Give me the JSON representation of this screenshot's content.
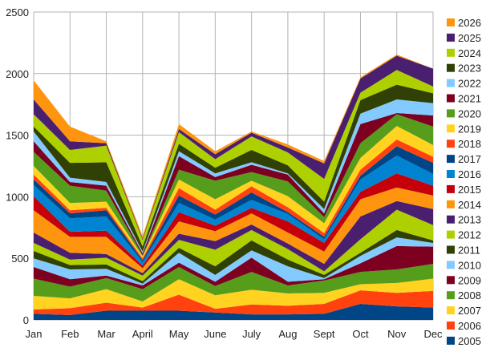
{
  "chart_data": {
    "type": "area",
    "stacked": true,
    "title": "",
    "xlabel": "",
    "ylabel": "",
    "ylim": [
      0,
      2500
    ],
    "yticks": [
      0,
      500,
      1000,
      1500,
      2000,
      2500
    ],
    "grid": true,
    "legend_position": "right",
    "categories": [
      "Jan",
      "Feb",
      "Mar",
      "April",
      "May",
      "June",
      "July",
      "Aug",
      "Sept",
      "Oct",
      "Nov",
      "Dec"
    ],
    "series": [
      {
        "name": "2005",
        "color": "#004586",
        "values": [
          50,
          40,
          75,
          75,
          75,
          60,
          45,
          45,
          50,
          130,
          110,
          100
        ]
      },
      {
        "name": "2006",
        "color": "#ff420e",
        "values": [
          35,
          55,
          65,
          25,
          130,
          30,
          80,
          70,
          80,
          110,
          110,
          135
        ]
      },
      {
        "name": "2007",
        "color": "#ffd320",
        "values": [
          110,
          80,
          110,
          50,
          125,
          110,
          120,
          100,
          90,
          50,
          80,
          100
        ]
      },
      {
        "name": "2008",
        "color": "#579d1c",
        "values": [
          140,
          95,
          90,
          100,
          100,
          75,
          145,
          65,
          100,
          100,
          110,
          120
        ]
      },
      {
        "name": "2009",
        "color": "#7e0021",
        "values": [
          95,
          60,
          20,
          30,
          35,
          35,
          115,
          30,
          10,
          70,
          190,
          140
        ]
      },
      {
        "name": "2010",
        "color": "#83caff",
        "values": [
          70,
          80,
          55,
          15,
          80,
          55,
          60,
          125,
          10,
          60,
          70,
          30
        ]
      },
      {
        "name": "2011",
        "color": "#314004",
        "values": [
          60,
          35,
          35,
          20,
          40,
          70,
          80,
          55,
          25,
          25,
          60,
          20
        ]
      },
      {
        "name": "2012",
        "color": "#aecf00",
        "values": [
          65,
          45,
          55,
          45,
          65,
          135,
          85,
          85,
          30,
          110,
          165,
          125
        ]
      },
      {
        "name": "2013",
        "color": "#4b1f6f",
        "values": [
          85,
          55,
          30,
          20,
          50,
          70,
          45,
          45,
          60,
          185,
          70,
          130
        ]
      },
      {
        "name": "2014",
        "color": "#ff950e",
        "values": [
          180,
          130,
          140,
          40,
          100,
          80,
          90,
          90,
          100,
          140,
          110,
          110
        ]
      },
      {
        "name": "2015",
        "color": "#c5000b",
        "values": [
          115,
          40,
          50,
          20,
          75,
          45,
          45,
          90,
          70,
          60,
          115,
          80
        ]
      },
      {
        "name": "2016",
        "color": "#0084d1",
        "values": [
          90,
          110,
          115,
          30,
          75,
          50,
          65,
          60,
          30,
          100,
          145,
          95
        ]
      },
      {
        "name": "2017",
        "color": "#004586",
        "values": [
          45,
          40,
          50,
          15,
          60,
          40,
          60,
          15,
          20,
          30,
          75,
          90
        ]
      },
      {
        "name": "2018",
        "color": "#ff420e",
        "values": [
          40,
          25,
          20,
          15,
          60,
          40,
          50,
          40,
          30,
          50,
          55,
          50
        ]
      },
      {
        "name": "2019",
        "color": "#ffd320",
        "values": [
          70,
          60,
          50,
          15,
          70,
          85,
          45,
          90,
          80,
          95,
          110,
          95
        ]
      },
      {
        "name": "2020",
        "color": "#579d1c",
        "values": [
          115,
          140,
          90,
          10,
          80,
          150,
          70,
          120,
          50,
          120,
          95,
          150
        ]
      },
      {
        "name": "2021",
        "color": "#7e0021",
        "values": [
          85,
          30,
          40,
          15,
          110,
          30,
          60,
          55,
          30,
          155,
          10,
          90
        ]
      },
      {
        "name": "2022",
        "color": "#83caff",
        "values": [
          80,
          35,
          30,
          15,
          40,
          30,
          20,
          10,
          35,
          85,
          110,
          100
        ]
      },
      {
        "name": "2023",
        "color": "#314004",
        "values": [
          40,
          120,
          160,
          40,
          60,
          45,
          100,
          65,
          60,
          110,
          120,
          80
        ]
      },
      {
        "name": "2024",
        "color": "#aecf00",
        "values": [
          100,
          105,
          135,
          55,
          95,
          70,
          110,
          105,
          185,
          60,
          120,
          55
        ]
      },
      {
        "name": "2025",
        "color": "#4b1f6f",
        "values": [
          120,
          70,
          20,
          10,
          25,
          40,
          30,
          40,
          125,
          115,
          115,
          145
        ]
      },
      {
        "name": "2026",
        "color": "#ff950e",
        "values": [
          155,
          120,
          15,
          20,
          40,
          25,
          10,
          25,
          20,
          10,
          10,
          0
        ]
      }
    ]
  }
}
